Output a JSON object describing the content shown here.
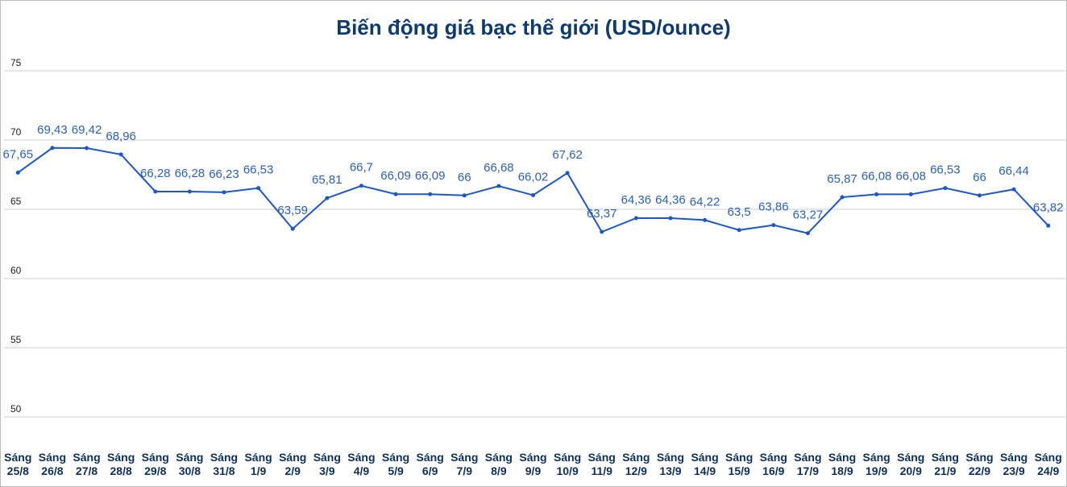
{
  "chart_data": {
    "type": "line",
    "title": "Biến động giá bạc thế giới (USD/ounce)",
    "categories": [
      "Sáng 25/8",
      "Sáng 26/8",
      "Sáng 27/8",
      "Sáng 28/8",
      "Sáng 29/8",
      "Sáng 30/8",
      "Sáng 31/8",
      "Sáng 1/9",
      "Sáng 2/9",
      "Sáng 3/9",
      "Sáng 4/9",
      "Sáng 5/9",
      "Sáng 6/9",
      "Sáng 7/9",
      "Sáng 8/9",
      "Sáng 9/9",
      "Sáng 10/9",
      "Sáng 11/9",
      "Sáng 12/9",
      "Sáng 13/9",
      "Sáng 14/9",
      "Sáng 15/9",
      "Sáng 16/9",
      "Sáng 17/9",
      "Sáng 18/9",
      "Sáng 19/9",
      "Sáng 20/9",
      "Sáng 21/9",
      "Sáng 22/9",
      "Sáng 23/9",
      "Sáng 24/9"
    ],
    "values": [
      67.65,
      69.43,
      69.42,
      68.96,
      66.28,
      66.28,
      66.23,
      66.53,
      63.59,
      65.81,
      66.7,
      66.09,
      66.09,
      66,
      66.68,
      66.02,
      67.62,
      63.37,
      64.36,
      64.36,
      64.22,
      63.5,
      63.86,
      63.27,
      65.87,
      66.08,
      66.08,
      66.53,
      66,
      66.44,
      63.82
    ],
    "value_labels": [
      "67,65",
      "69,43",
      "69,42",
      "68,96",
      "66,28",
      "66,28",
      "66,23",
      "66,53",
      "63,59",
      "65,81",
      "66,7",
      "66,09",
      "66,09",
      "66",
      "66,68",
      "66,02",
      "67,62",
      "63,37",
      "64,36",
      "64,36",
      "64,22",
      "63,5",
      "63,86",
      "63,27",
      "65,87",
      "66,08",
      "66,08",
      "66,53",
      "66",
      "66,44",
      "63,82"
    ],
    "color": "#1a56cc",
    "ylim": [
      47.5,
      80
    ],
    "yticks": [
      50,
      55,
      60,
      65,
      70,
      75
    ],
    "grid": true
  }
}
